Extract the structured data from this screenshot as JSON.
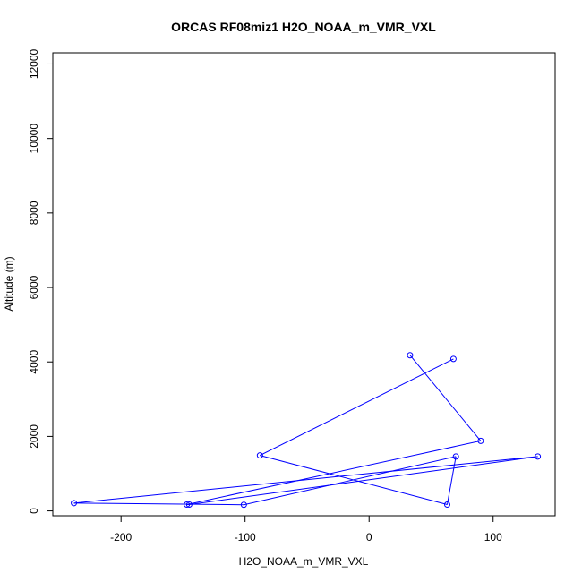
{
  "chart_data": {
    "type": "line",
    "title": "ORCAS RF08miz1 H2O_NOAA_m_VMR_VXL",
    "xlabel": "H2O_NOAA_m_VMR_VXL",
    "ylabel": "Altitude (m)",
    "xlim": [
      -255,
      150
    ],
    "ylim": [
      -130,
      12300
    ],
    "xticks": [
      -200,
      -100,
      0,
      100
    ],
    "yticks": [
      0,
      2000,
      4000,
      6000,
      8000,
      10000,
      12000
    ],
    "grid": false,
    "series": [
      {
        "color": "#0000ff",
        "marker": "open-circle",
        "points": [
          {
            "x": 33,
            "y": 4180
          },
          {
            "x": 90,
            "y": 1880
          },
          {
            "x": -147,
            "y": 170
          },
          {
            "x": -145,
            "y": 170
          },
          {
            "x": 136,
            "y": 1460
          },
          {
            "x": -238,
            "y": 210
          },
          {
            "x": -101,
            "y": 165
          },
          {
            "x": 70,
            "y": 1460
          },
          {
            "x": 63,
            "y": 170
          },
          {
            "x": -88,
            "y": 1490
          },
          {
            "x": 68,
            "y": 4080
          }
        ]
      }
    ]
  }
}
